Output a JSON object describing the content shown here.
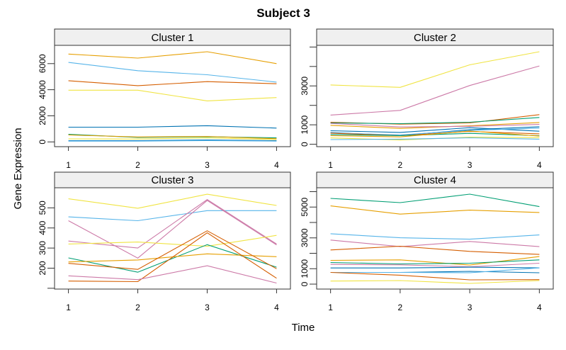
{
  "title": "Subject 3",
  "xlabel": "Time",
  "ylabel": "Gene Expression",
  "palette": {
    "orange": "#E69F00",
    "sky": "#56B4E9",
    "green": "#009E73",
    "yellow": "#F0E442",
    "blue": "#0072B2",
    "vermillion": "#D55E00",
    "pink": "#CC79A7"
  },
  "chart_data": [
    {
      "type": "line",
      "title": "Cluster 1",
      "x": [
        1,
        2,
        3,
        4
      ],
      "xlim": [
        0.8,
        4.2
      ],
      "ylim": [
        -365,
        7400
      ],
      "xticks": [
        1,
        2,
        3,
        4
      ],
      "yticks": [
        0,
        2000,
        4000,
        6000
      ],
      "ytick_labels": [
        "0",
        "2000",
        "4000",
        "6000"
      ],
      "series": [
        {
          "color": "#E69F00",
          "values": [
            6730,
            6420,
            6910,
            6000
          ]
        },
        {
          "color": "#56B4E9",
          "values": [
            6090,
            5455,
            5145,
            4580
          ]
        },
        {
          "color": "#D55E00",
          "values": [
            4690,
            4310,
            4620,
            4455
          ]
        },
        {
          "color": "#F0E442",
          "values": [
            3965,
            3965,
            3145,
            3400
          ]
        },
        {
          "color": "#0072B2",
          "values": [
            1130,
            1130,
            1240,
            1055
          ]
        },
        {
          "color": "#009E73",
          "values": [
            580,
            345,
            400,
            310
          ]
        },
        {
          "color": "#E69F00",
          "values": [
            530,
            380,
            420,
            245
          ]
        },
        {
          "color": "#F0E442",
          "values": [
            235,
            220,
            310,
            180
          ]
        },
        {
          "color": "#0072B2",
          "values": [
            90,
            90,
            150,
            90
          ]
        },
        {
          "color": "#56B4E9",
          "values": [
            60,
            60,
            100,
            60
          ]
        }
      ]
    },
    {
      "type": "line",
      "title": "Cluster 2",
      "x": [
        1,
        2,
        3,
        4
      ],
      "xlim": [
        0.8,
        4.2
      ],
      "ylim": [
        -124,
        5086
      ],
      "xticks": [
        1,
        2,
        3,
        4
      ],
      "yticks": [
        0,
        1000,
        2000,
        3000,
        4000,
        5000
      ],
      "ytick_labels": [
        "0",
        "1000",
        "",
        "3000",
        "",
        ""
      ],
      "series": [
        {
          "color": "#F0E442",
          "values": [
            3048,
            2926,
            4085,
            4758
          ]
        },
        {
          "color": "#CC79A7",
          "values": [
            1500,
            1742,
            3022,
            4025
          ]
        },
        {
          "color": "#D55E00",
          "values": [
            1134,
            1036,
            1098,
            1522
          ]
        },
        {
          "color": "#009E73",
          "values": [
            1098,
            1061,
            1134,
            1376
          ]
        },
        {
          "color": "#E69F00",
          "values": [
            973,
            816,
            951,
            1120
          ]
        },
        {
          "color": "#CC79A7",
          "values": [
            1070,
            890,
            920,
            1020
          ]
        },
        {
          "color": "#0072B2",
          "values": [
            695,
            607,
            852,
            670
          ]
        },
        {
          "color": "#0072B2",
          "values": [
            600,
            450,
            750,
            900
          ]
        },
        {
          "color": "#56B4E9",
          "values": [
            580,
            480,
            710,
            830
          ]
        },
        {
          "color": "#D55E00",
          "values": [
            571,
            439,
            659,
            534
          ]
        },
        {
          "color": "#009E73",
          "values": [
            500,
            440,
            560,
            440
          ]
        },
        {
          "color": "#E69F00",
          "values": [
            440,
            380,
            680,
            420
          ]
        },
        {
          "color": "#F0E442",
          "values": [
            329,
            220,
            366,
            340
          ]
        },
        {
          "color": "#56B4E9",
          "values": [
            241,
            264,
            330,
            264
          ]
        }
      ]
    },
    {
      "type": "line",
      "title": "Cluster 3",
      "x": [
        1,
        2,
        3,
        4
      ],
      "xlim": [
        0.8,
        4.2
      ],
      "ylim": [
        96,
        600
      ],
      "xticks": [
        1,
        2,
        3,
        4
      ],
      "yticks": [
        100,
        200,
        300,
        400,
        500
      ],
      "ytick_labels": [
        "",
        "200",
        "300",
        "400",
        "500"
      ],
      "series": [
        {
          "color": "#F0E442",
          "values": [
            545,
            498,
            568,
            512
          ]
        },
        {
          "color": "#56B4E9",
          "values": [
            455,
            436,
            486,
            486
          ]
        },
        {
          "color": "#CC79A7",
          "values": [
            436,
            250,
            537,
            316
          ]
        },
        {
          "color": "#CC79A7",
          "values": [
            335,
            300,
            541,
            320
          ]
        },
        {
          "color": "#F0E442",
          "values": [
            320,
            330,
            309,
            363
          ]
        },
        {
          "color": "#009E73",
          "values": [
            251,
            180,
            317,
            205
          ]
        },
        {
          "color": "#E69F00",
          "values": [
            231,
            241,
            271,
            257
          ]
        },
        {
          "color": "#D55E00",
          "values": [
            224,
            194,
            386,
            197
          ]
        },
        {
          "color": "#D55E00",
          "values": [
            136,
            133,
            376,
            150
          ]
        },
        {
          "color": "#CC79A7",
          "values": [
            162,
            143,
            212,
            126
          ]
        }
      ]
    },
    {
      "type": "line",
      "title": "Cluster 4",
      "x": [
        1,
        2,
        3,
        4
      ],
      "xlim": [
        0.8,
        4.2
      ],
      "ylim": [
        -321,
        6252
      ],
      "xticks": [
        1,
        2,
        3,
        4
      ],
      "yticks": [
        0,
        1000,
        2000,
        3000,
        4000,
        5000,
        6000
      ],
      "ytick_labels": [
        "0",
        "1000",
        "",
        "3000",
        "",
        "5000",
        ""
      ],
      "series": [
        {
          "color": "#009E73",
          "values": [
            5564,
            5289,
            5839,
            5028
          ]
        },
        {
          "color": "#E69F00",
          "values": [
            5073,
            4541,
            4798,
            4647
          ]
        },
        {
          "color": "#56B4E9",
          "values": [
            3271,
            3009,
            2917,
            3193
          ]
        },
        {
          "color": "#CC79A7",
          "values": [
            2858,
            2431,
            2766,
            2431
          ]
        },
        {
          "color": "#D55E00",
          "values": [
            2216,
            2459,
            2124,
            1927
          ]
        },
        {
          "color": "#E69F00",
          "values": [
            1541,
            1573,
            1239,
            1789
          ]
        },
        {
          "color": "#009E73",
          "values": [
            1404,
            1312,
            1358,
            1573
          ]
        },
        {
          "color": "#CC79A7",
          "values": [
            1284,
            1252,
            1128,
            1358
          ]
        },
        {
          "color": "#0072B2",
          "values": [
            1050,
            1050,
            1100,
            1055
          ]
        },
        {
          "color": "#0072B2",
          "values": [
            761,
            761,
            826,
            734
          ]
        },
        {
          "color": "#56B4E9",
          "values": [
            761,
            761,
            734,
            1055
          ]
        },
        {
          "color": "#D55E00",
          "values": [
            761,
            578,
            275,
            289
          ]
        },
        {
          "color": "#F0E442",
          "values": [
            197,
            229,
            46,
            229
          ]
        }
      ]
    }
  ]
}
